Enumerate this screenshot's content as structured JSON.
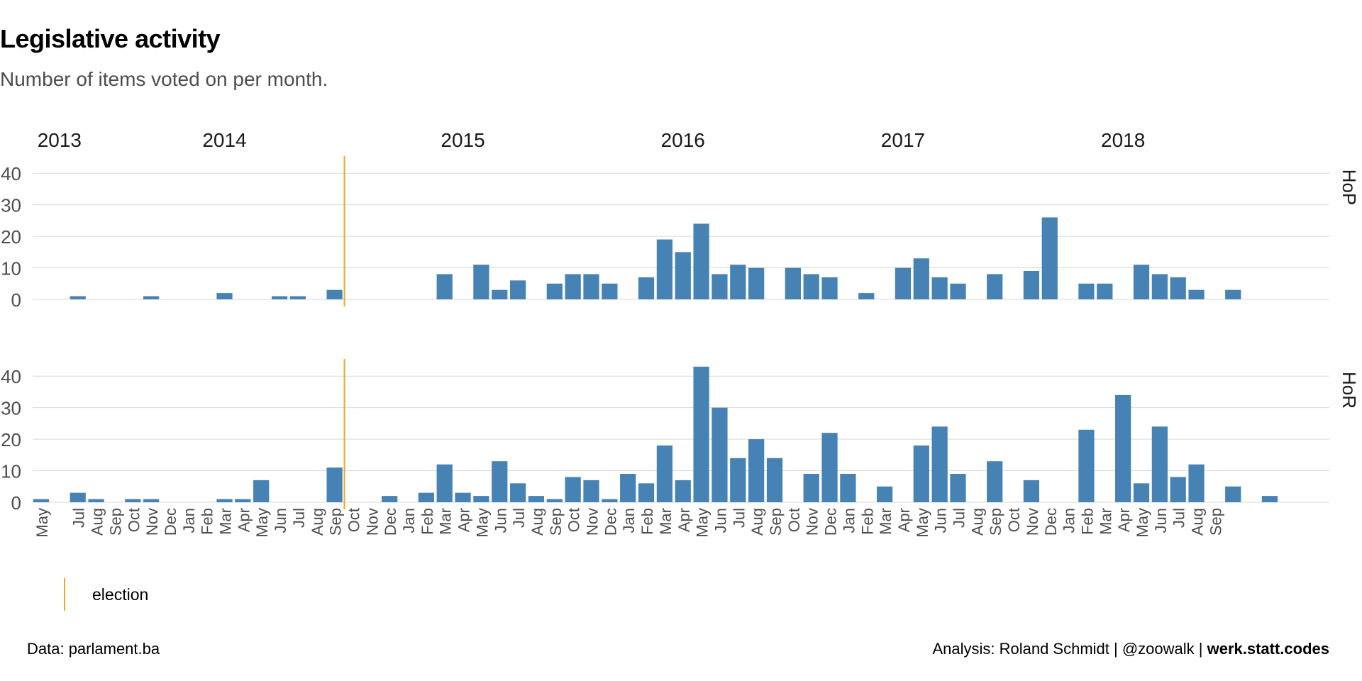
{
  "title": "Legislative activity",
  "subtitle": "Number of items voted on per month.",
  "caption": {
    "left": "Data: parlament.ba",
    "right_prefix": "Analysis: Roland Schmidt | @zoowalk | ",
    "right_bold": "werk.statt.codes"
  },
  "legend": {
    "label": "election",
    "color": "#f5a623"
  },
  "colors": {
    "bar": "#4682b4",
    "election_line": "#f5a623",
    "grid": "#d9d9d9"
  },
  "chart_data": {
    "type": "bar",
    "x_unit": "month",
    "x_range": [
      "2013-05",
      "2018-09"
    ],
    "ylim": [
      0,
      45
    ],
    "y_ticks": [
      0,
      10,
      20,
      30,
      40
    ],
    "grid": true,
    "election_month": "2014-10",
    "year_labels": [
      {
        "label": "2013",
        "month": "2013-06"
      },
      {
        "label": "2014",
        "month": "2014-03"
      },
      {
        "label": "2015",
        "month": "2015-04"
      },
      {
        "label": "2016",
        "month": "2016-04"
      },
      {
        "label": "2017",
        "month": "2017-04"
      },
      {
        "label": "2018",
        "month": "2018-04"
      }
    ],
    "month_labels": {
      "01": "Jan",
      "02": "Feb",
      "03": "Mar",
      "04": "Apr",
      "05": "May",
      "06": "Jun",
      "07": "Jul",
      "08": "Aug",
      "09": "Sep",
      "10": "Oct",
      "11": "Nov",
      "12": "Dec"
    },
    "x_tick_months": [
      "2013-05",
      "2013-07",
      "2013-08",
      "2013-09",
      "2013-10",
      "2013-11",
      "2013-12",
      "2014-01",
      "2014-02",
      "2014-03",
      "2014-04",
      "2014-05",
      "2014-06",
      "2014-07",
      "2014-08",
      "2014-09",
      "2014-10",
      "2014-11",
      "2014-12",
      "2015-01",
      "2015-02",
      "2015-03",
      "2015-04",
      "2015-05",
      "2015-06",
      "2015-07",
      "2015-08",
      "2015-09",
      "2015-10",
      "2015-11",
      "2015-12",
      "2016-01",
      "2016-02",
      "2016-03",
      "2016-04",
      "2016-05",
      "2016-06",
      "2016-07",
      "2016-08",
      "2016-09",
      "2016-10",
      "2016-11",
      "2016-12",
      "2017-01",
      "2017-02",
      "2017-03",
      "2017-04",
      "2017-05",
      "2017-06",
      "2017-07",
      "2017-08",
      "2017-09",
      "2017-10",
      "2017-11",
      "2017-12",
      "2018-01",
      "2018-02",
      "2018-03",
      "2018-04",
      "2018-05",
      "2018-06",
      "2018-07",
      "2018-08",
      "2018-09"
    ],
    "panels": [
      {
        "name": "HoP",
        "data": [
          [
            "2013-07",
            1
          ],
          [
            "2013-11",
            1
          ],
          [
            "2014-03",
            2
          ],
          [
            "2014-06",
            1
          ],
          [
            "2014-07",
            1
          ],
          [
            "2014-09",
            3
          ],
          [
            "2015-03",
            8
          ],
          [
            "2015-05",
            11
          ],
          [
            "2015-06",
            3
          ],
          [
            "2015-07",
            6
          ],
          [
            "2015-09",
            5
          ],
          [
            "2015-10",
            8
          ],
          [
            "2015-11",
            8
          ],
          [
            "2015-12",
            5
          ],
          [
            "2016-02",
            7
          ],
          [
            "2016-03",
            19
          ],
          [
            "2016-04",
            15
          ],
          [
            "2016-05",
            24
          ],
          [
            "2016-06",
            8
          ],
          [
            "2016-07",
            11
          ],
          [
            "2016-08",
            10
          ],
          [
            "2016-10",
            10
          ],
          [
            "2016-11",
            8
          ],
          [
            "2016-12",
            7
          ],
          [
            "2017-02",
            2
          ],
          [
            "2017-04",
            10
          ],
          [
            "2017-05",
            13
          ],
          [
            "2017-06",
            7
          ],
          [
            "2017-07",
            5
          ],
          [
            "2017-09",
            8
          ],
          [
            "2017-11",
            9
          ],
          [
            "2017-12",
            26
          ],
          [
            "2018-02",
            5
          ],
          [
            "2018-03",
            5
          ],
          [
            "2018-05",
            11
          ],
          [
            "2018-06",
            8
          ],
          [
            "2018-07",
            7
          ],
          [
            "2018-08",
            3
          ],
          [
            "2018-10",
            3
          ]
        ]
      },
      {
        "name": "HoR",
        "data": [
          [
            "2013-05",
            1
          ],
          [
            "2013-07",
            3
          ],
          [
            "2013-08",
            1
          ],
          [
            "2013-10",
            1
          ],
          [
            "2013-11",
            1
          ],
          [
            "2014-03",
            1
          ],
          [
            "2014-04",
            1
          ],
          [
            "2014-05",
            7
          ],
          [
            "2014-09",
            11
          ],
          [
            "2014-12",
            2
          ],
          [
            "2015-02",
            3
          ],
          [
            "2015-03",
            12
          ],
          [
            "2015-04",
            3
          ],
          [
            "2015-05",
            2
          ],
          [
            "2015-06",
            13
          ],
          [
            "2015-07",
            6
          ],
          [
            "2015-08",
            2
          ],
          [
            "2015-09",
            1
          ],
          [
            "2015-10",
            8
          ],
          [
            "2015-11",
            7
          ],
          [
            "2015-12",
            1
          ],
          [
            "2016-01",
            9
          ],
          [
            "2016-02",
            6
          ],
          [
            "2016-03",
            18
          ],
          [
            "2016-04",
            7
          ],
          [
            "2016-05",
            43
          ],
          [
            "2016-06",
            30
          ],
          [
            "2016-07",
            14
          ],
          [
            "2016-08",
            20
          ],
          [
            "2016-09",
            14
          ],
          [
            "2016-11",
            9
          ],
          [
            "2016-12",
            22
          ],
          [
            "2017-01",
            9
          ],
          [
            "2017-03",
            5
          ],
          [
            "2017-05",
            18
          ],
          [
            "2017-06",
            24
          ],
          [
            "2017-07",
            9
          ],
          [
            "2017-09",
            13
          ],
          [
            "2017-11",
            7
          ],
          [
            "2018-02",
            23
          ],
          [
            "2018-04",
            34
          ],
          [
            "2018-05",
            6
          ],
          [
            "2018-06",
            24
          ],
          [
            "2018-07",
            8
          ],
          [
            "2018-08",
            12
          ],
          [
            "2018-10",
            5
          ],
          [
            "2018-12",
            2
          ]
        ]
      }
    ]
  }
}
